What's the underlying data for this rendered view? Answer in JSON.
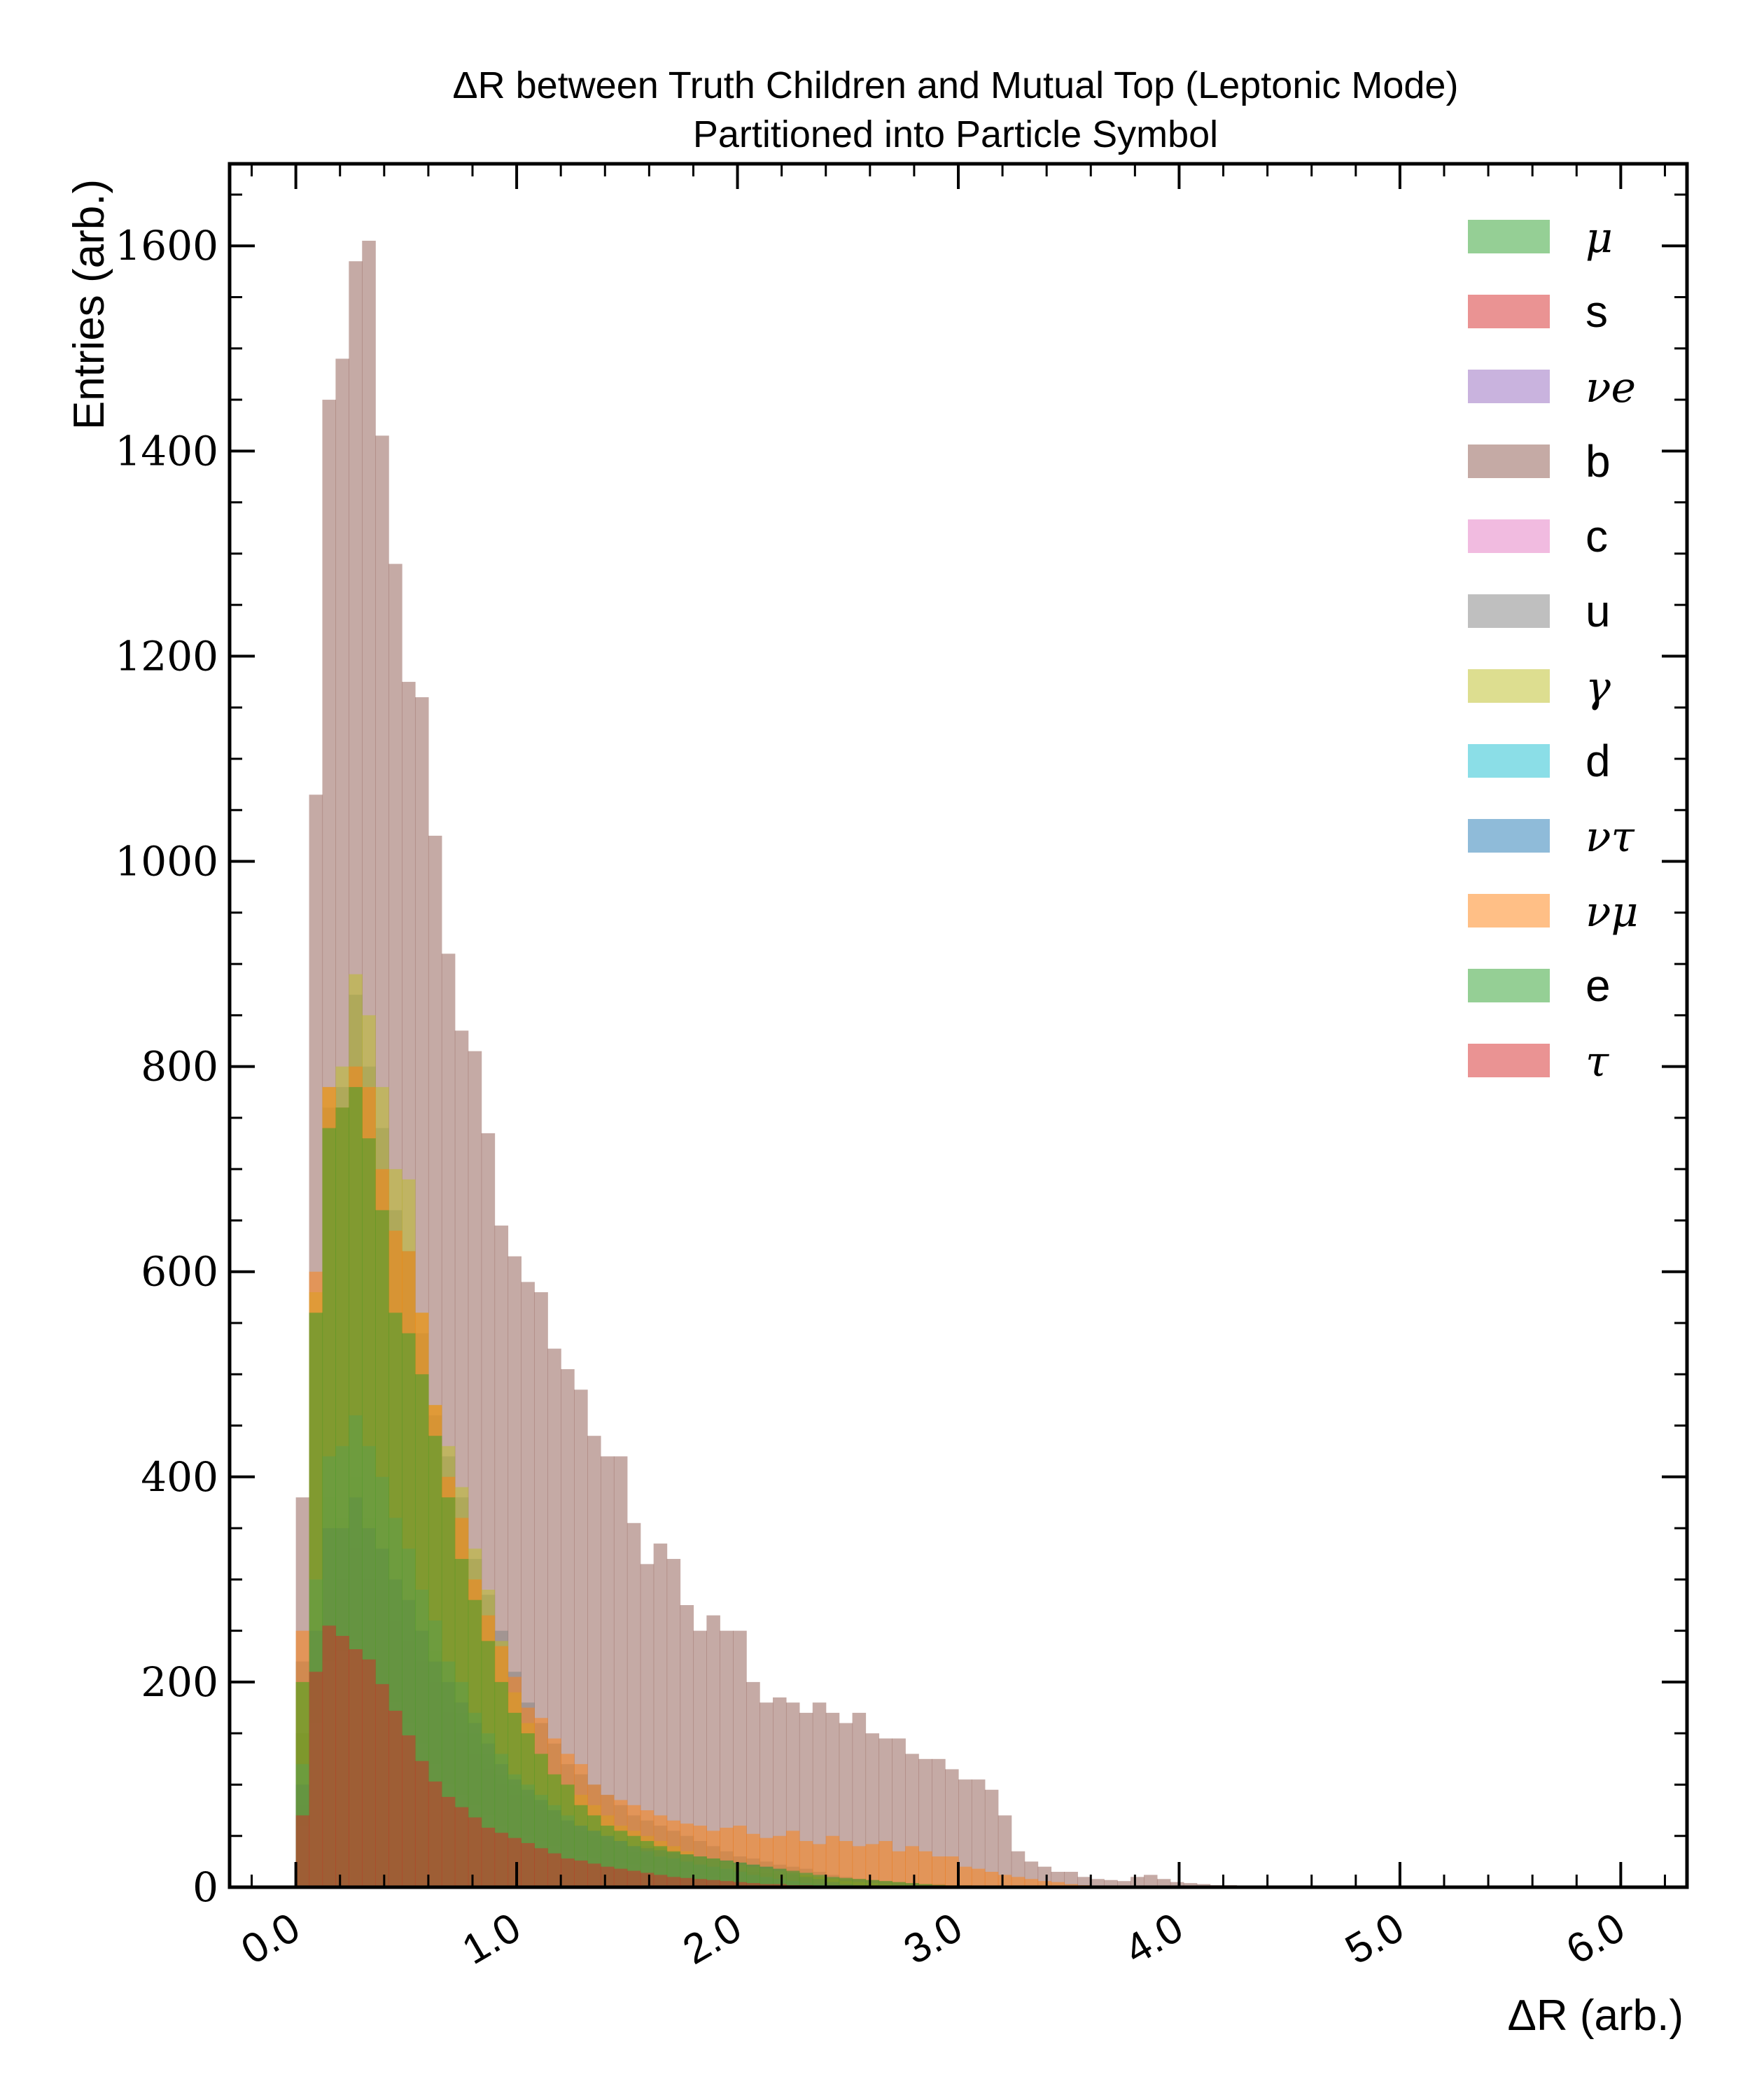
{
  "chart_data": {
    "type": "bar",
    "title_line1": "ΔR between Truth Children and Mutual Top (Leptonic Mode)",
    "title_line2": "Partitioned into Particle Symbol",
    "xlabel": "ΔR (arb.)",
    "ylabel": "Entries (arb.)",
    "xlim": [
      -0.3,
      6.3
    ],
    "ylim": [
      0,
      1680
    ],
    "xticks": [
      "0.0",
      "1.0",
      "2.0",
      "3.0",
      "4.0",
      "5.0",
      "6.0"
    ],
    "yticks": [
      "0",
      "200",
      "400",
      "600",
      "800",
      "1000",
      "1200",
      "1400",
      "1600"
    ],
    "legend_location": "top-right",
    "bin_start": 0.0,
    "bin_width": 0.06,
    "series": [
      {
        "name": "μ",
        "color": "#2ca02c",
        "values": [
          150,
          280,
          380,
          360,
          400,
          360,
          330,
          300,
          280,
          250,
          230,
          200,
          170,
          150,
          130,
          110,
          100,
          90,
          85,
          75,
          65,
          55,
          50,
          45,
          40,
          35,
          32,
          30,
          28,
          25,
          22,
          20,
          18,
          16,
          15,
          14,
          13,
          12,
          11,
          10,
          9,
          8,
          8,
          7,
          6,
          5,
          4,
          3,
          3,
          2,
          2,
          1,
          1,
          1
        ]
      },
      {
        "name": "s",
        "color": "#d62728",
        "values": [
          30,
          60,
          75,
          70,
          72,
          65,
          60,
          55,
          50,
          45,
          40,
          35,
          30,
          25,
          22,
          20,
          18,
          16,
          14,
          12,
          10,
          9,
          8,
          7,
          6,
          5,
          5,
          4,
          4,
          3,
          3,
          2,
          2,
          2,
          1,
          1,
          1
        ]
      },
      {
        "name": "νe",
        "color": "#9467bd",
        "values": [
          80,
          200,
          290,
          300,
          330,
          300,
          290,
          260,
          240,
          220,
          200,
          170,
          150,
          130,
          115,
          100,
          90,
          85,
          80,
          75,
          65,
          60,
          55,
          50,
          45,
          40,
          40,
          38,
          35,
          32,
          30,
          28,
          26,
          24,
          22,
          20,
          18,
          16,
          12,
          8,
          6,
          4,
          3,
          2,
          1,
          1
        ]
      },
      {
        "name": "b",
        "color": "#8c564b",
        "values": [
          380,
          1065,
          1450,
          1490,
          1585,
          1605,
          1415,
          1290,
          1175,
          1160,
          1025,
          910,
          835,
          815,
          735,
          645,
          615,
          590,
          580,
          525,
          505,
          485,
          440,
          420,
          420,
          355,
          315,
          335,
          320,
          275,
          250,
          265,
          250,
          250,
          200,
          180,
          185,
          180,
          170,
          180,
          170,
          160,
          170,
          150,
          145,
          145,
          130,
          125,
          125,
          115,
          105,
          105,
          95,
          70,
          35,
          25,
          20,
          15,
          15,
          10,
          8,
          7,
          6,
          10,
          12,
          8,
          5,
          4,
          3,
          2,
          2,
          1
        ]
      },
      {
        "name": "c",
        "color": "#e377c2",
        "values": [
          60,
          160,
          220,
          230,
          240,
          220,
          200,
          180,
          160,
          140,
          120,
          100,
          90,
          80,
          70,
          60,
          55,
          50,
          45,
          40,
          35,
          30,
          28,
          26,
          24,
          22,
          20,
          18,
          16,
          14,
          12,
          10,
          8,
          6,
          4,
          3,
          2,
          1
        ]
      },
      {
        "name": "u",
        "color": "#7f7f7f",
        "values": [
          220,
          560,
          760,
          780,
          870,
          800,
          740,
          660,
          620,
          540,
          460,
          420,
          380,
          320,
          285,
          250,
          210,
          180,
          160,
          140,
          120,
          110,
          100,
          90,
          80,
          70,
          65,
          60,
          55,
          50,
          45,
          40,
          35,
          30,
          28,
          25,
          22,
          20,
          18,
          15,
          12,
          10,
          8,
          6,
          5,
          4,
          3,
          2,
          1
        ]
      },
      {
        "name": "γ",
        "color": "#bcbd22",
        "values": [
          200,
          580,
          780,
          800,
          890,
          850,
          780,
          700,
          690,
          560,
          470,
          430,
          390,
          330,
          290,
          240,
          190,
          160,
          130,
          110,
          100,
          90,
          80,
          70,
          60,
          55,
          50,
          45,
          40,
          35,
          30,
          28,
          25,
          22,
          20,
          18,
          16,
          14,
          12,
          10,
          8,
          6,
          5,
          4,
          3,
          2,
          1
        ]
      },
      {
        "name": "d",
        "color": "#17becf",
        "values": [
          120,
          300,
          420,
          430,
          460,
          430,
          400,
          360,
          330,
          290,
          260,
          220,
          200,
          170,
          150,
          130,
          110,
          100,
          90,
          80,
          70,
          60,
          55,
          50,
          45,
          40,
          35,
          30,
          28,
          25,
          22,
          20,
          18,
          15,
          12,
          10,
          8,
          6,
          4,
          3,
          2,
          1
        ]
      },
      {
        "name": "ντ",
        "color": "#1f77b4",
        "values": [
          100,
          250,
          350,
          350,
          380,
          350,
          330,
          300,
          280,
          250,
          220,
          200,
          180,
          160,
          140,
          120,
          105,
          95,
          85,
          75,
          65,
          60,
          55,
          50,
          45,
          40,
          38,
          36,
          34,
          32,
          30,
          28,
          26,
          24,
          22,
          20,
          18,
          14,
          10,
          8,
          5,
          3,
          2,
          1
        ]
      },
      {
        "name": "νμ",
        "color": "#ff7f0e",
        "values": [
          250,
          600,
          780,
          760,
          800,
          780,
          700,
          640,
          620,
          560,
          470,
          400,
          360,
          300,
          265,
          235,
          205,
          175,
          165,
          145,
          130,
          120,
          100,
          90,
          85,
          80,
          75,
          70,
          65,
          62,
          60,
          55,
          58,
          60,
          52,
          48,
          50,
          55,
          45,
          42,
          50,
          45,
          40,
          42,
          45,
          35,
          40,
          35,
          30,
          30,
          20,
          18,
          15,
          12,
          10,
          8,
          6,
          5,
          3,
          2,
          1,
          1
        ]
      },
      {
        "name": "e",
        "color": "#2ca02c",
        "values": [
          200,
          560,
          740,
          760,
          780,
          730,
          660,
          560,
          540,
          500,
          440,
          380,
          320,
          280,
          240,
          200,
          170,
          150,
          130,
          110,
          100,
          80,
          70,
          60,
          55,
          50,
          45,
          40,
          35,
          32,
          30,
          28,
          26,
          24,
          22,
          20,
          18,
          16,
          14,
          12,
          10,
          9,
          8,
          7,
          6,
          5,
          4,
          3,
          2,
          1
        ]
      },
      {
        "name": "τ",
        "color": "#d62728",
        "values": [
          70,
          210,
          255,
          245,
          232,
          222,
          198,
          172,
          148,
          123,
          103,
          88,
          78,
          68,
          58,
          53,
          48,
          43,
          38,
          33,
          28,
          26,
          23,
          20,
          18,
          16,
          14,
          12,
          10,
          9,
          8,
          7,
          6,
          5,
          4,
          3,
          3,
          2,
          2,
          1
        ]
      }
    ]
  }
}
